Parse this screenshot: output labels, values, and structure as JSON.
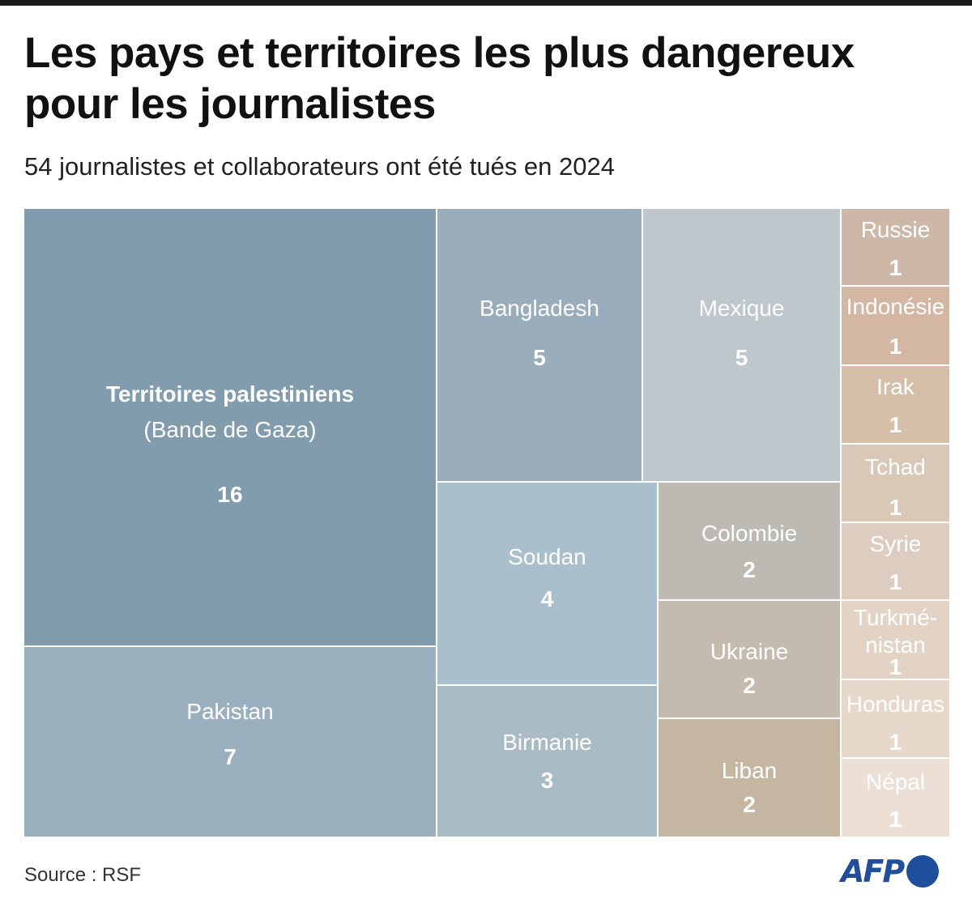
{
  "header": {
    "title": "Les pays et territoires les plus dangereux pour les journalistes",
    "subtitle": "54 journalistes et collaborateurs ont été tués en 2024"
  },
  "footer": {
    "source": "Source : RSF",
    "logo_text": "AFP"
  },
  "colors": {
    "blue_dark": "#819cad",
    "blue_mid": "#9bb0bf",
    "blue_light": "#a9bfcc",
    "grey_blue": "#c0c8cc",
    "taupe": "#c7baa8",
    "brand": "#1f4e9c"
  },
  "chart_data": {
    "type": "treemap",
    "title": "Les pays et territoires les plus dangereux pour les journalistes",
    "subtitle": "54 journalistes et collaborateurs ont été tués en 2024",
    "items": [
      {
        "label": "Territoires palestiniens",
        "sublabel": "(Bande de Gaza)",
        "value": 16,
        "color": "#819cad"
      },
      {
        "label": "Pakistan",
        "value": 7,
        "color": "#9bb0bf"
      },
      {
        "label": "Bangladesh",
        "value": 5,
        "color": "#99adbd"
      },
      {
        "label": "Mexique",
        "value": 5,
        "color": "#bec7cb"
      },
      {
        "label": "Soudan",
        "value": 4,
        "color": "#a9bfcc"
      },
      {
        "label": "Birmanie",
        "value": 3,
        "color": "#a9bcc5"
      },
      {
        "label": "Colombie",
        "value": 2,
        "color": "#bcbab3"
      },
      {
        "label": "Ukraine",
        "value": 2,
        "color": "#c4bbae"
      },
      {
        "label": "Liban",
        "value": 2,
        "color": "#c5b6a2"
      },
      {
        "label": "Russie",
        "value": 1,
        "color": "#cdb8a8"
      },
      {
        "label": "Indonésie",
        "value": 1,
        "color": "#d4b7a2"
      },
      {
        "label": "Irak",
        "value": 1,
        "color": "#d6bfa8"
      },
      {
        "label": "Tchad",
        "value": 1,
        "color": "#dac8b6"
      },
      {
        "label": "Syrie",
        "value": 1,
        "color": "#ddcdc0"
      },
      {
        "label": "Turkmé-\nnistan",
        "value": 1,
        "color": "#e3d3c5"
      },
      {
        "label": "Honduras",
        "value": 1,
        "color": "#e6d8ca"
      },
      {
        "label": "Népal",
        "value": 1,
        "color": "#ecdfd6"
      }
    ]
  }
}
